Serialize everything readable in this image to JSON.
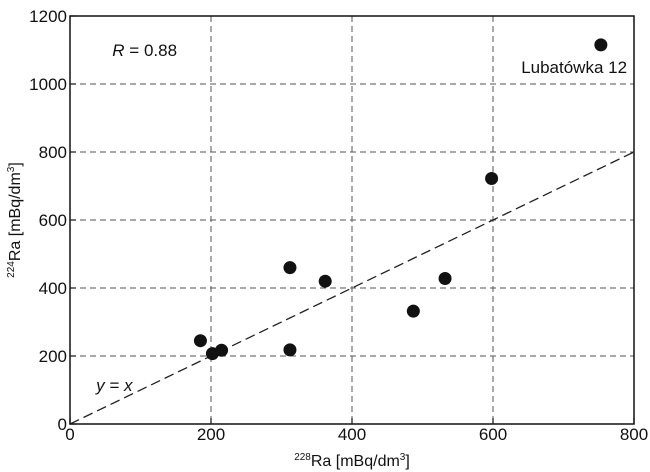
{
  "chart_data": {
    "type": "scatter",
    "x_tick_labels": [
      "0",
      "200",
      "400",
      "600",
      "800"
    ],
    "y_tick_labels": [
      "0",
      "200",
      "400",
      "600",
      "800",
      "1000",
      "1200"
    ],
    "xlim": [
      0,
      800
    ],
    "ylim": [
      0,
      1200
    ],
    "grid": true,
    "xlabel": {
      "sup": "228",
      "main": "Ra [mBq/dm",
      "sup2": "3",
      "end": "]"
    },
    "ylabel": {
      "sup": "224",
      "main": "Ra [mBq/dm",
      "sup2": "3",
      "end": "]"
    },
    "annotations": {
      "r_var": "R",
      "r_rest": " = 0.88",
      "fit_label": "y = x",
      "point_label": "Lubatówka 12"
    },
    "reference_line": {
      "type": "y=x",
      "style": "dashed"
    },
    "points": [
      {
        "x": 185,
        "y": 245
      },
      {
        "x": 202,
        "y": 207
      },
      {
        "x": 215,
        "y": 217
      },
      {
        "x": 312,
        "y": 460
      },
      {
        "x": 312,
        "y": 218
      },
      {
        "x": 362,
        "y": 420
      },
      {
        "x": 487,
        "y": 332
      },
      {
        "x": 532,
        "y": 428
      },
      {
        "x": 598,
        "y": 722
      },
      {
        "x": 753,
        "y": 1115
      }
    ],
    "colors": {
      "points": "#111111",
      "grid": "#555555",
      "axis": "#111111"
    }
  }
}
